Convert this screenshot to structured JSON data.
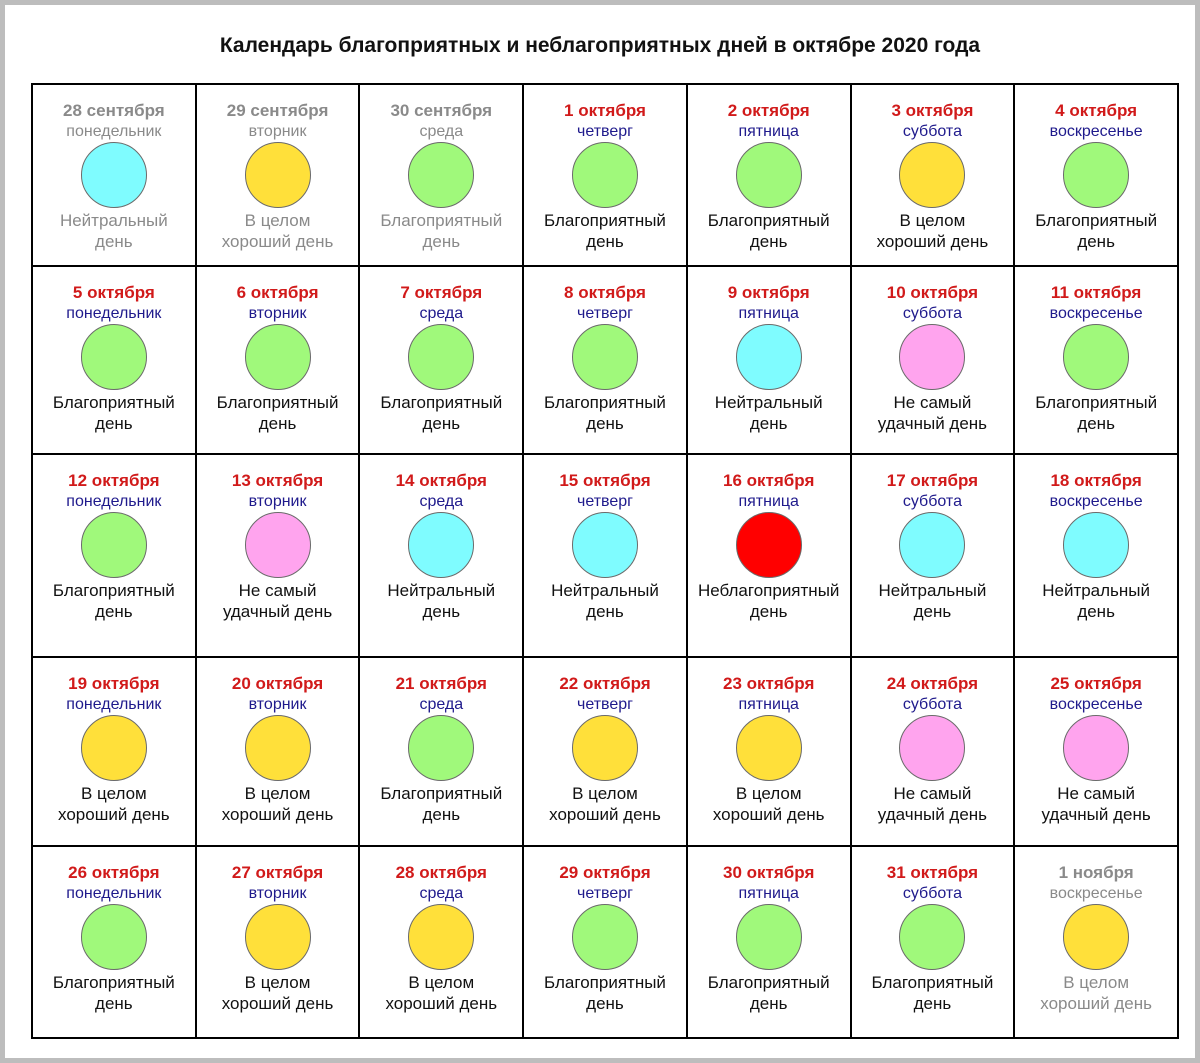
{
  "title": "Календарь благоприятных и неблагоприятных дней в октябре 2020 года",
  "status_colors": {
    "neutral": "#7ffcff",
    "good": "#ffe03a",
    "favorable": "#a0f97b",
    "not_lucky": "#ffa4ee",
    "unfavorable": "#ff0000"
  },
  "status_labels": {
    "neutral": "Нейтральный\nдень",
    "good": "В целом\nхороший день",
    "favorable": "Благоприятный\nдень",
    "not_lucky": "Не самый\nудачный день",
    "unfavorable": "Неблагоприятный\nдень"
  },
  "days": [
    {
      "date": "28 сентября",
      "weekday": "понедельник",
      "status": "neutral",
      "muted": true
    },
    {
      "date": "29 сентября",
      "weekday": "вторник",
      "status": "good",
      "muted": true
    },
    {
      "date": "30 сентября",
      "weekday": "среда",
      "status": "favorable",
      "muted": true
    },
    {
      "date": "1 октября",
      "weekday": "четверг",
      "status": "favorable",
      "muted": false
    },
    {
      "date": "2 октября",
      "weekday": "пятница",
      "status": "favorable",
      "muted": false
    },
    {
      "date": "3 октября",
      "weekday": "суббота",
      "status": "good",
      "muted": false
    },
    {
      "date": "4 октября",
      "weekday": "воскресенье",
      "status": "favorable",
      "muted": false
    },
    {
      "date": "5 октября",
      "weekday": "понедельник",
      "status": "favorable",
      "muted": false
    },
    {
      "date": "6 октября",
      "weekday": "вторник",
      "status": "favorable",
      "muted": false
    },
    {
      "date": "7 октября",
      "weekday": "среда",
      "status": "favorable",
      "muted": false
    },
    {
      "date": "8 октября",
      "weekday": "четверг",
      "status": "favorable",
      "muted": false
    },
    {
      "date": "9 октября",
      "weekday": "пятница",
      "status": "neutral",
      "muted": false
    },
    {
      "date": "10 октября",
      "weekday": "суббота",
      "status": "not_lucky",
      "muted": false
    },
    {
      "date": "11 октября",
      "weekday": "воскресенье",
      "status": "favorable",
      "muted": false
    },
    {
      "date": "12 октября",
      "weekday": "понедельник",
      "status": "favorable",
      "muted": false
    },
    {
      "date": "13 октября",
      "weekday": "вторник",
      "status": "not_lucky",
      "muted": false
    },
    {
      "date": "14 октября",
      "weekday": "среда",
      "status": "neutral",
      "muted": false
    },
    {
      "date": "15 октября",
      "weekday": "четверг",
      "status": "neutral",
      "muted": false
    },
    {
      "date": "16 октября",
      "weekday": "пятница",
      "status": "unfavorable",
      "muted": false
    },
    {
      "date": "17 октября",
      "weekday": "суббота",
      "status": "neutral",
      "muted": false
    },
    {
      "date": "18 октября",
      "weekday": "воскресенье",
      "status": "neutral",
      "muted": false
    },
    {
      "date": "19 октября",
      "weekday": "понедельник",
      "status": "good",
      "muted": false
    },
    {
      "date": "20 октября",
      "weekday": "вторник",
      "status": "good",
      "muted": false
    },
    {
      "date": "21 октября",
      "weekday": "среда",
      "status": "favorable",
      "muted": false
    },
    {
      "date": "22 октября",
      "weekday": "четверг",
      "status": "good",
      "muted": false
    },
    {
      "date": "23 октября",
      "weekday": "пятница",
      "status": "good",
      "muted": false
    },
    {
      "date": "24 октября",
      "weekday": "суббота",
      "status": "not_lucky",
      "muted": false
    },
    {
      "date": "25 октября",
      "weekday": "воскресенье",
      "status": "not_lucky",
      "muted": false
    },
    {
      "date": "26 октября",
      "weekday": "понедельник",
      "status": "favorable",
      "muted": false
    },
    {
      "date": "27 октября",
      "weekday": "вторник",
      "status": "good",
      "muted": false
    },
    {
      "date": "28 октября",
      "weekday": "среда",
      "status": "good",
      "muted": false
    },
    {
      "date": "29 октября",
      "weekday": "четверг",
      "status": "favorable",
      "muted": false
    },
    {
      "date": "30 октября",
      "weekday": "пятница",
      "status": "favorable",
      "muted": false
    },
    {
      "date": "31 октября",
      "weekday": "суббота",
      "status": "favorable",
      "muted": false
    },
    {
      "date": "1 ноября",
      "weekday": "воскресенье",
      "status": "good",
      "muted": true
    }
  ]
}
